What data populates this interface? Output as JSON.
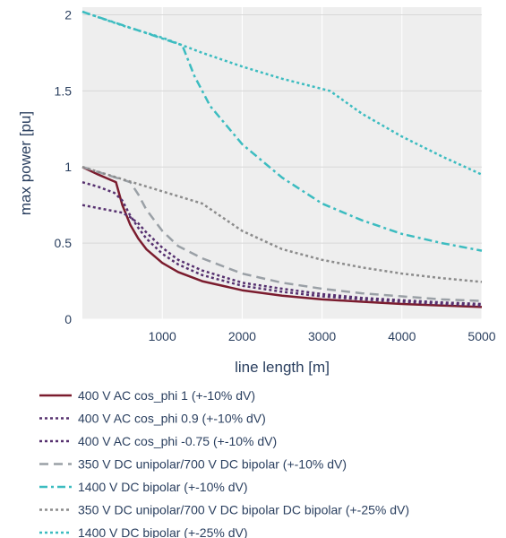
{
  "chart_data": {
    "type": "line",
    "xlabel": "line length [m]",
    "ylabel": "max power [pu]",
    "xlim": [
      0,
      5000
    ],
    "ylim": [
      0,
      2.05
    ],
    "xticks": [
      1000,
      2000,
      3000,
      4000,
      5000
    ],
    "yticks": [
      0,
      0.5,
      1,
      1.5,
      2
    ],
    "ytick_labels": [
      "0",
      "0.5",
      "1",
      "1.5",
      "2"
    ],
    "grid": true,
    "legend_position": "bottom",
    "series": [
      {
        "name": "400 V AC cos_phi 1 (+-10% dV)",
        "color": "#7b1c2e",
        "dash": "solid",
        "x": [
          0,
          200,
          420,
          500,
          600,
          700,
          800,
          1000,
          1200,
          1500,
          2000,
          2500,
          3000,
          3500,
          4000,
          4500,
          5000
        ],
        "y": [
          1.0,
          0.95,
          0.9,
          0.75,
          0.62,
          0.53,
          0.46,
          0.37,
          0.31,
          0.25,
          0.19,
          0.155,
          0.13,
          0.115,
          0.1,
          0.09,
          0.08
        ]
      },
      {
        "name": "400 V AC cos_phi 0.9 (+-10% dV)",
        "color": "#56306f",
        "dash": "dot",
        "x": [
          0,
          200,
          400,
          500,
          600,
          700,
          800,
          1000,
          1200,
          1500,
          2000,
          2500,
          3000,
          3500,
          4000,
          4500,
          5000
        ],
        "y": [
          0.9,
          0.87,
          0.83,
          0.78,
          0.68,
          0.6,
          0.53,
          0.43,
          0.36,
          0.29,
          0.22,
          0.18,
          0.15,
          0.13,
          0.115,
          0.1,
          0.09
        ]
      },
      {
        "name": "400 V AC cos_phi -0.75 (+-10% dV)",
        "color": "#56306f",
        "dash": "dot",
        "x": [
          0,
          200,
          400,
          500,
          600,
          700,
          800,
          1000,
          1200,
          1500,
          2000,
          2500,
          3000,
          3500,
          4000,
          4500,
          5000
        ],
        "y": [
          0.75,
          0.73,
          0.71,
          0.7,
          0.67,
          0.63,
          0.57,
          0.47,
          0.39,
          0.32,
          0.24,
          0.2,
          0.165,
          0.14,
          0.125,
          0.11,
          0.1
        ]
      },
      {
        "name": "350 V DC unipolar/700 V DC bipolar (+-10% dV)",
        "color": "#9aa0a6",
        "dash": "dash",
        "x": [
          0,
          300,
          600,
          700,
          800,
          1000,
          1200,
          1500,
          2000,
          2500,
          3000,
          3500,
          4000,
          4500,
          5000
        ],
        "y": [
          1.0,
          0.95,
          0.9,
          0.82,
          0.72,
          0.58,
          0.48,
          0.4,
          0.3,
          0.24,
          0.2,
          0.17,
          0.15,
          0.13,
          0.12
        ]
      },
      {
        "name": "1400 V DC bipolar (+-10% dV)",
        "color": "#3cbcc0",
        "dash": "dashdot",
        "x": [
          0,
          400,
          800,
          1250,
          1400,
          1600,
          2000,
          2500,
          3000,
          3500,
          4000,
          4500,
          5000
        ],
        "y": [
          2.02,
          1.95,
          1.88,
          1.8,
          1.6,
          1.4,
          1.15,
          0.93,
          0.76,
          0.65,
          0.56,
          0.5,
          0.45
        ]
      },
      {
        "name": "350 V DC unipolar/700 V DC bipolar DC bipolar (+-25% dV)",
        "color": "#8c8c8c",
        "dash": "dot",
        "x": [
          0,
          500,
          1000,
          1500,
          2000,
          2500,
          3000,
          3500,
          4000,
          4500,
          5000
        ],
        "y": [
          1.0,
          0.92,
          0.84,
          0.76,
          0.58,
          0.46,
          0.39,
          0.34,
          0.3,
          0.27,
          0.245
        ]
      },
      {
        "name": "1400 V DC bipolar (+-25% dV)",
        "color": "#3cbcc0",
        "dash": "dot",
        "x": [
          0,
          500,
          1000,
          1500,
          2000,
          2500,
          3100,
          3500,
          4000,
          4500,
          5000
        ],
        "y": [
          2.02,
          1.93,
          1.85,
          1.75,
          1.66,
          1.58,
          1.5,
          1.35,
          1.2,
          1.07,
          0.95
        ]
      }
    ]
  }
}
